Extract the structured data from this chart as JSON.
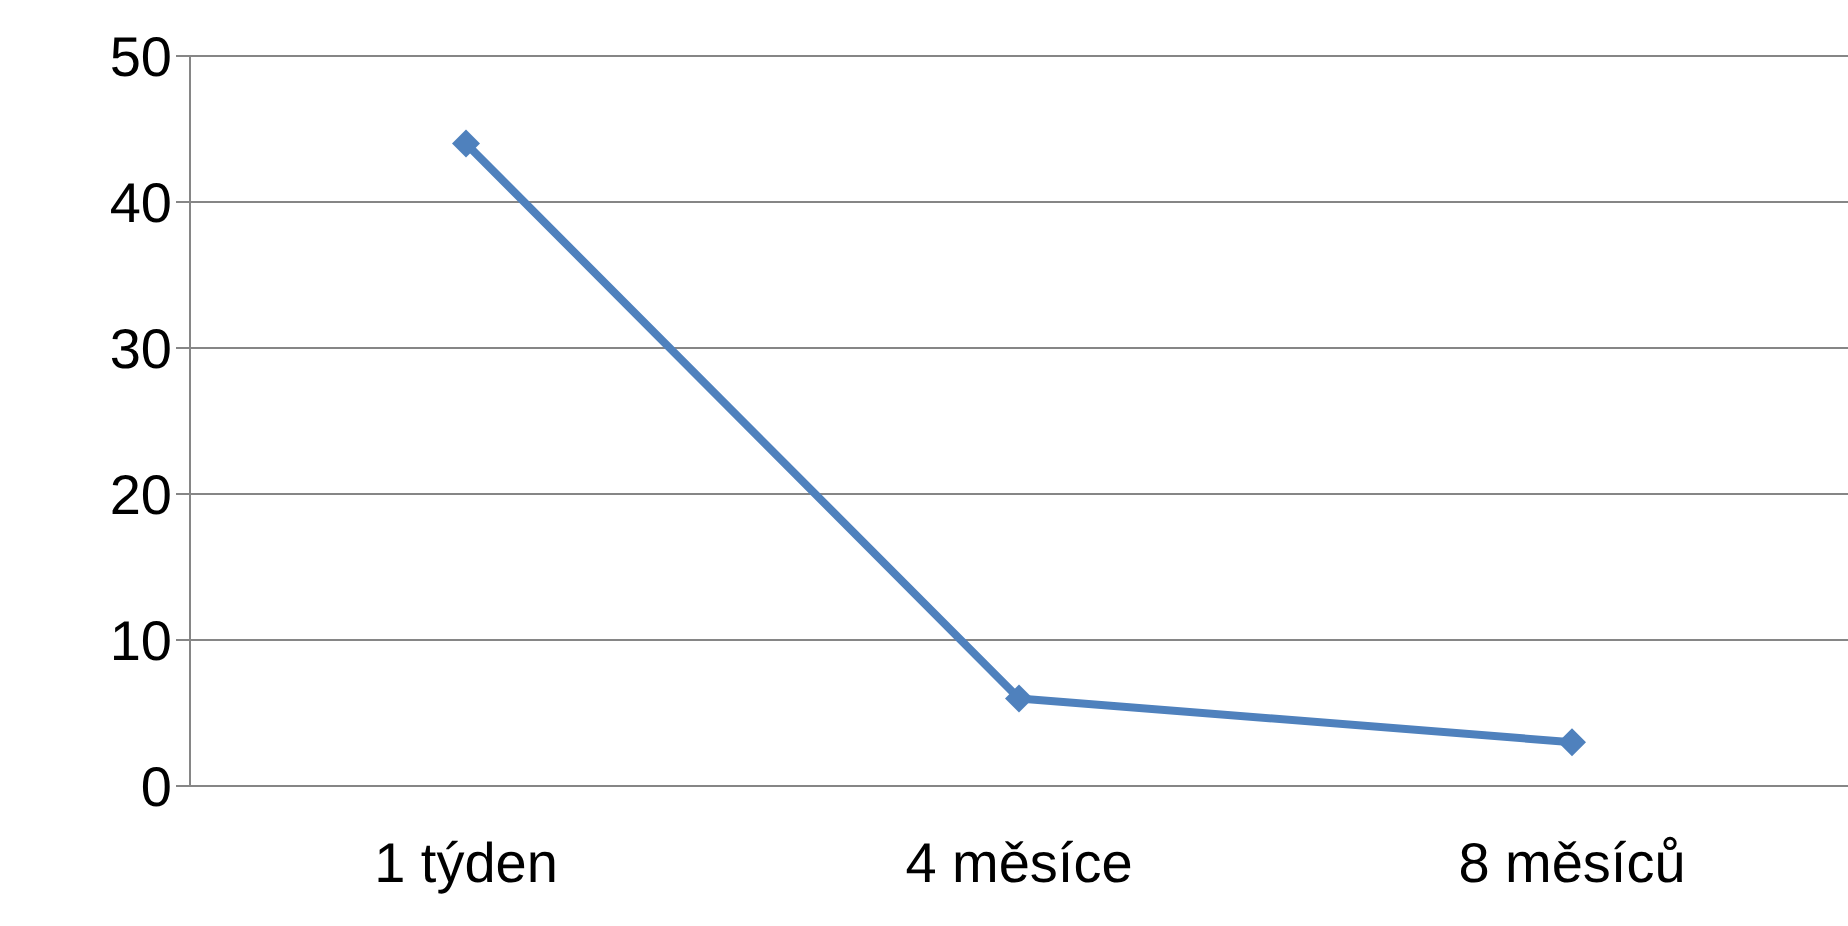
{
  "chart_data": {
    "type": "line",
    "categories": [
      "1 týden",
      "4 měsíce",
      "8 měsíců"
    ],
    "series": [
      {
        "color": "#4f81bd",
        "values": [
          44,
          6,
          3
        ]
      }
    ],
    "ylim": [
      0,
      50
    ],
    "yticks": [
      0,
      10,
      20,
      30,
      40,
      50
    ],
    "grid": "y",
    "marker": "diamond",
    "line_style": "solid",
    "legend": false
  }
}
